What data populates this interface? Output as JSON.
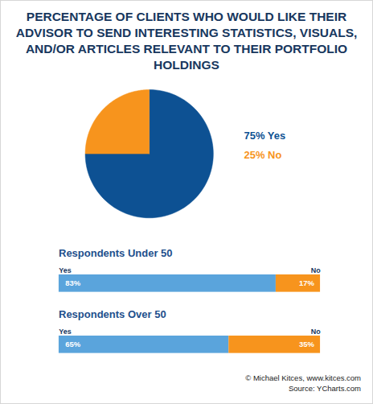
{
  "chart_data": [
    {
      "type": "pie",
      "title": "PERCENTAGE OF CLIENTS WHO WOULD LIKE THEIR ADVISOR TO SEND INTERESTING STATISTICS, VISUALS, AND/OR ARTICLES RELEVANT TO THEIR PORTFOLIO HOLDINGS",
      "categories": [
        "Yes",
        "No"
      ],
      "values": [
        75,
        25
      ],
      "value_labels": [
        "75% Yes",
        "25% No"
      ],
      "colors": [
        "#0d5193",
        "#f7941d"
      ],
      "data_labels": true
    },
    {
      "type": "bar",
      "title": "Respondents Under 50",
      "orientation": "horizontal",
      "stacked": true,
      "categories": [
        null
      ],
      "xlim": [
        0,
        100
      ],
      "tick_labels": false,
      "data_labels": true,
      "series": [
        {
          "name": "Yes",
          "color": "#5aa4dc",
          "values": [
            83
          ],
          "value_labels": [
            "83%"
          ]
        },
        {
          "name": "No",
          "color": "#f7941d",
          "values": [
            17
          ],
          "value_labels": [
            "17%"
          ]
        }
      ]
    },
    {
      "type": "bar",
      "title": "Respondents Over 50",
      "orientation": "horizontal",
      "stacked": true,
      "categories": [
        null
      ],
      "xlim": [
        0,
        100
      ],
      "tick_labels": false,
      "data_labels": true,
      "series": [
        {
          "name": "Yes",
          "color": "#5aa4dc",
          "values": [
            65
          ],
          "value_labels": [
            "65%"
          ]
        },
        {
          "name": "No",
          "color": "#f7941d",
          "values": [
            35
          ],
          "value_labels": [
            "35%"
          ]
        }
      ],
      "annotations": [
        "© Michael Kitces, www.kitces.com",
        "Source: YCharts.com"
      ]
    }
  ]
}
